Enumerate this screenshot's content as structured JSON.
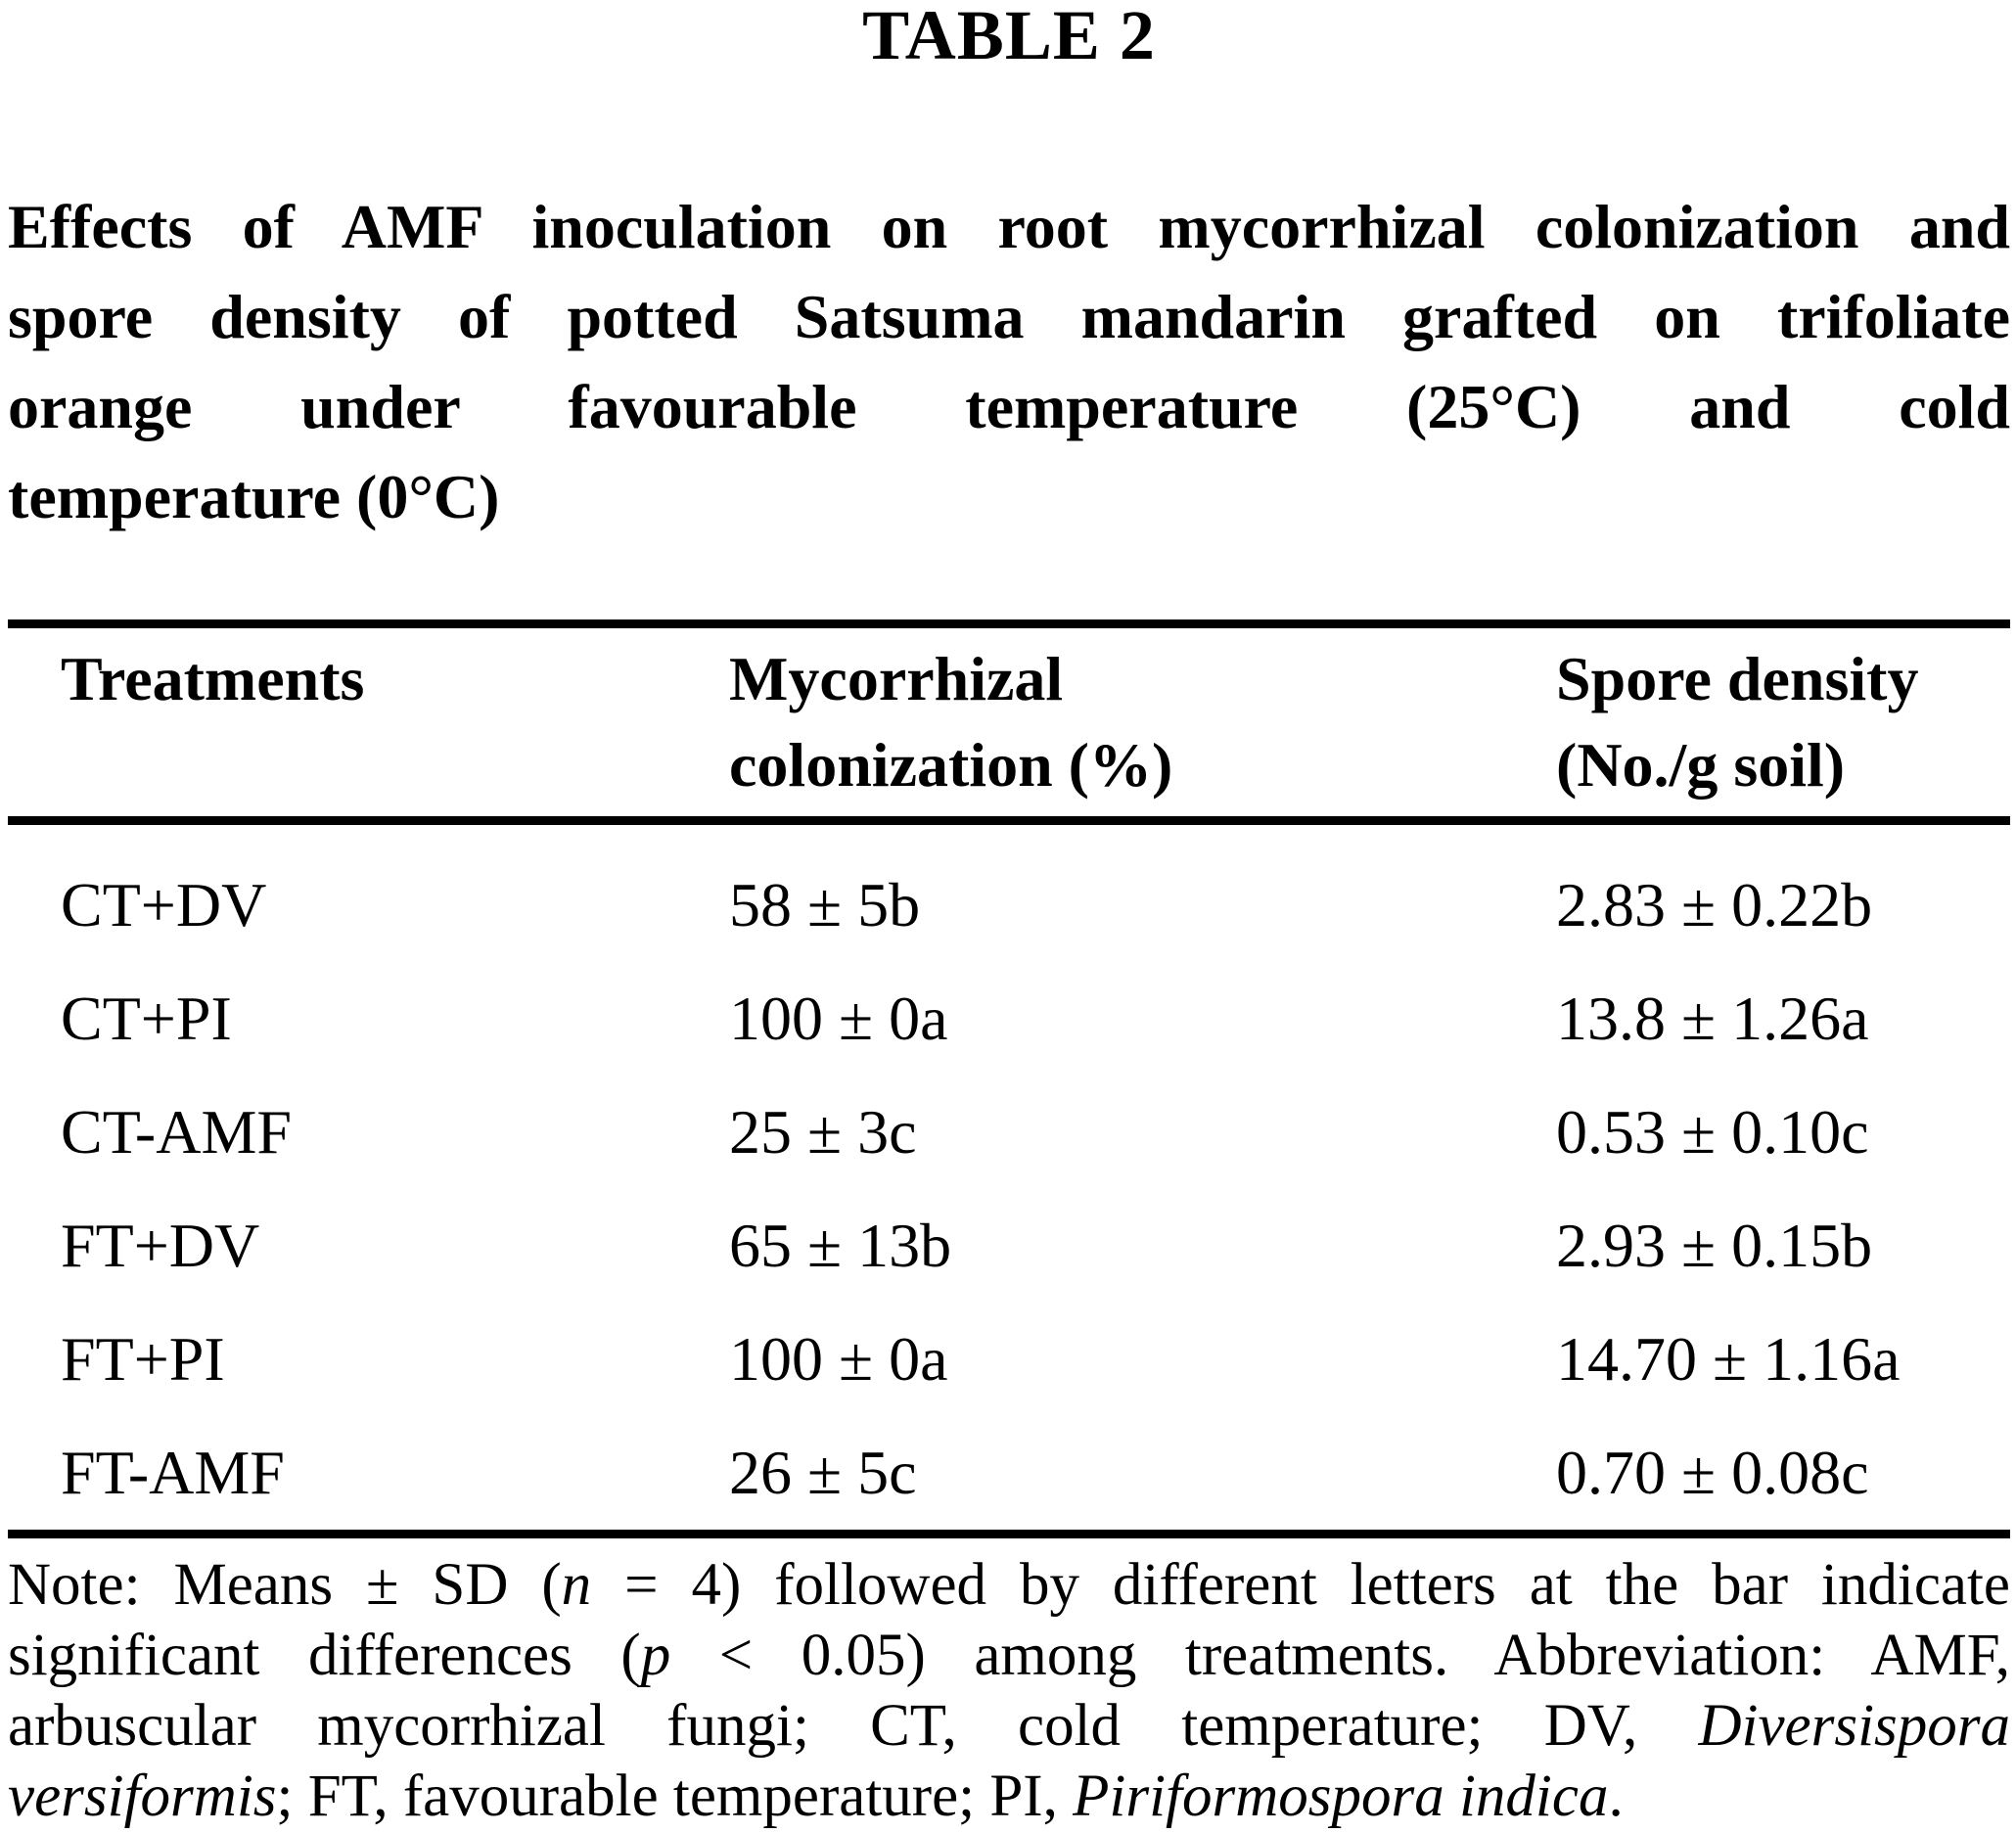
{
  "page": {
    "title": "TABLE 2"
  },
  "caption": {
    "full_text": "Effects of AMF inoculation on root mycorrhizal colonization and spore density of potted Satsuma mandarin grafted on trifoliate orange under favourable temperature (25°C) and cold temperature (0°C)",
    "lines": [
      "Effects of AMF inoculation on root mycorrhizal colonization and",
      "spore density of potted Satsuma mandarin grafted on trifoliate",
      "orange under favourable temperature (25°C) and cold",
      "temperature (0°C)"
    ]
  },
  "table": {
    "columns": [
      {
        "line1": "Treatments",
        "line2": ""
      },
      {
        "line1": "Mycorrhizal",
        "line2": "colonization (%)"
      },
      {
        "line1": "Spore density",
        "line2": "(No./g soil)"
      }
    ],
    "rows": [
      {
        "treatment": "CT+DV",
        "colonization": "58 ± 5b",
        "spore_density": "2.83 ± 0.22b"
      },
      {
        "treatment": "CT+PI",
        "colonization": "100 ± 0a",
        "spore_density": "13.8 ± 1.26a"
      },
      {
        "treatment": "CT-AMF",
        "colonization": "25 ± 3c",
        "spore_density": "0.53 ± 0.10c"
      },
      {
        "treatment": "FT+DV",
        "colonization": "65 ± 13b",
        "spore_density": "2.93 ± 0.15b"
      },
      {
        "treatment": "FT+PI",
        "colonization": "100 ± 0a",
        "spore_density": "14.70 ± 1.16a"
      },
      {
        "treatment": "FT-AMF",
        "colonization": "26 ± 5c",
        "spore_density": "0.70 ± 0.08c"
      }
    ]
  },
  "note": {
    "full_text": "Note: Means ± SD (n = 4) followed by different letters at the bar indicate significant differences (p < 0.05) among treatments. Abbreviation: AMF, arbuscular mycorrhizal fungi; CT, cold temperature; DV, Diversispora versiformis; FT, favourable temperature; PI, Piriformospora indica.",
    "l1a": "Note: Means ± SD (",
    "l1b": "n",
    "l1c": " = 4) followed by different letters at the bar indicate",
    "l2a": "significant differences (",
    "l2b": "p",
    "l2c": " < 0.05) among treatments. Abbreviation: AMF,",
    "l3a": "arbuscular mycorrhizal fungi; CT, cold temperature; DV, ",
    "l3b": "Diversispora",
    "l4a": "versiformis",
    "l4b": "; FT, favourable temperature; PI, ",
    "l4c": "Piriformospora indica",
    "l4d": "."
  },
  "colors": {
    "text": "#000000",
    "background": "#ffffff",
    "rule": "#000000"
  }
}
